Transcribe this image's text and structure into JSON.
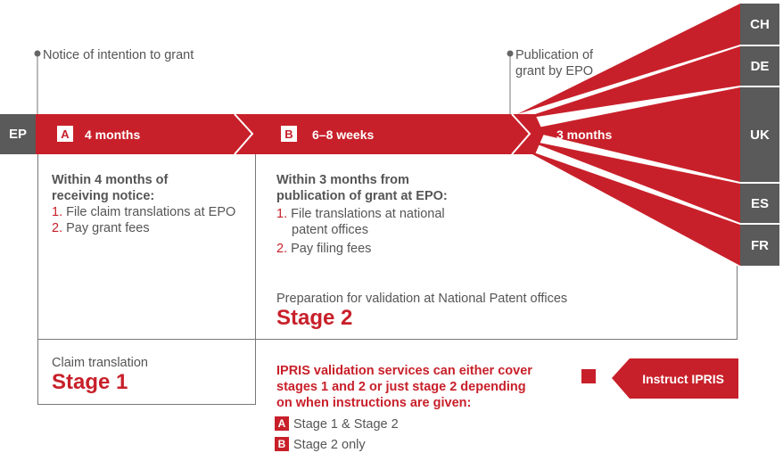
{
  "annotations": {
    "notice": "Notice of intention to grant",
    "publication_line1": "Publication of",
    "publication_line2": "grant by EPO"
  },
  "timeline": {
    "ep_label": "EP",
    "segment_a": {
      "badge": "A",
      "label": "4 months"
    },
    "segment_b": {
      "badge": "B",
      "label": "6–8 weeks"
    },
    "segment_c": {
      "label": "3 months"
    }
  },
  "countries": [
    "CH",
    "DE",
    "UK",
    "ES",
    "FR"
  ],
  "stage1_box": {
    "heading_line1": "Within 4 months of",
    "heading_line2": "receiving notice:",
    "items": [
      {
        "num": "1.",
        "text": "File claim translations at EPO"
      },
      {
        "num": "2.",
        "text": "Pay grant fees"
      }
    ],
    "caption": "Claim translation",
    "stage": "Stage 1"
  },
  "stage2_box": {
    "heading_line1": "Within 3 months from",
    "heading_line2": "publication of grant at EPO:",
    "items": [
      {
        "num": "1.",
        "text_line1": "File translations at national",
        "text_line2": "patent offices"
      },
      {
        "num": "2.",
        "text_line1": "Pay filing fees"
      }
    ],
    "caption": "Preparation for validation at National Patent offices",
    "stage": "Stage 2"
  },
  "services": {
    "line1": "IPRIS validation services can either cover",
    "line2": "stages 1 and 2 or just stage 2 depending",
    "line3": "on when instructions are given:",
    "options": [
      {
        "badge": "A",
        "text": "Stage 1 & Stage 2"
      },
      {
        "badge": "B",
        "text": "Stage 2 only"
      }
    ],
    "button_label": "Instruct IPRIS"
  },
  "colors": {
    "red": "#c8202a",
    "gray": "#5a5a5a",
    "line": "#777777"
  }
}
